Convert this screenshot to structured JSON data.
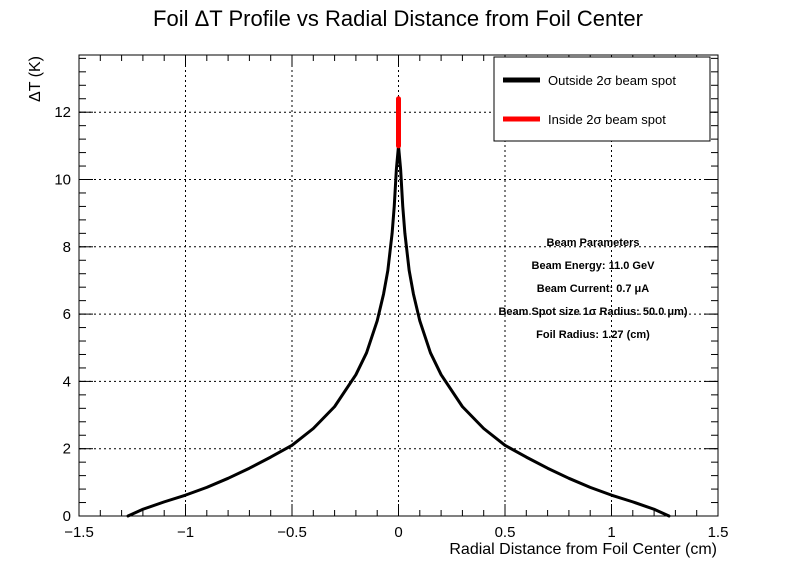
{
  "chart_data": {
    "type": "line",
    "title": "Foil ΔT Profile vs Radial Distance from Foil Center",
    "xlabel": "Radial Distance from Foil Center (cm)",
    "ylabel": "ΔT (K)",
    "xlim": [
      -1.5,
      1.5
    ],
    "ylim": [
      0,
      13.7
    ],
    "x_ticks": [
      -1.5,
      -1,
      -0.5,
      0,
      0.5,
      1,
      1.5
    ],
    "x_tick_labels": [
      "−1.5",
      "−1",
      "−0.5",
      "0",
      "0.5",
      "1",
      "1.5"
    ],
    "y_ticks": [
      0,
      2,
      4,
      6,
      8,
      10,
      12
    ],
    "y_tick_labels": [
      "0",
      "2",
      "4",
      "6",
      "8",
      "10",
      "12"
    ],
    "grid": true,
    "legend_position": "top-right",
    "series": [
      {
        "name": "Outside 2σ beam spot",
        "color": "#000000",
        "points": [
          [
            -1.27,
            0.0
          ],
          [
            -1.2,
            0.2
          ],
          [
            -1.1,
            0.42
          ],
          [
            -1.0,
            0.62
          ],
          [
            -0.9,
            0.85
          ],
          [
            -0.8,
            1.12
          ],
          [
            -0.7,
            1.42
          ],
          [
            -0.6,
            1.75
          ],
          [
            -0.5,
            2.1
          ],
          [
            -0.4,
            2.6
          ],
          [
            -0.3,
            3.25
          ],
          [
            -0.2,
            4.2
          ],
          [
            -0.15,
            4.85
          ],
          [
            -0.1,
            5.8
          ],
          [
            -0.07,
            6.6
          ],
          [
            -0.05,
            7.3
          ],
          [
            -0.03,
            8.4
          ],
          [
            -0.02,
            9.2
          ],
          [
            -0.01,
            10.3
          ],
          [
            0.0,
            11.0
          ],
          [
            0.01,
            10.3
          ],
          [
            0.02,
            9.2
          ],
          [
            0.03,
            8.4
          ],
          [
            0.05,
            7.3
          ],
          [
            0.07,
            6.6
          ],
          [
            0.1,
            5.8
          ],
          [
            0.15,
            4.85
          ],
          [
            0.2,
            4.2
          ],
          [
            0.3,
            3.25
          ],
          [
            0.4,
            2.6
          ],
          [
            0.5,
            2.1
          ],
          [
            0.6,
            1.75
          ],
          [
            0.7,
            1.42
          ],
          [
            0.8,
            1.12
          ],
          [
            0.9,
            0.85
          ],
          [
            1.0,
            0.62
          ],
          [
            1.1,
            0.42
          ],
          [
            1.2,
            0.2
          ],
          [
            1.27,
            0.0
          ]
        ]
      },
      {
        "name": "Inside 2σ beam spot",
        "color": "#ff0000",
        "points": [
          [
            0.0,
            11.0
          ],
          [
            0.0,
            11.6
          ],
          [
            0.0,
            12.0
          ],
          [
            0.0,
            12.4
          ]
        ]
      }
    ],
    "annotation": {
      "heading": "Beam Parameters",
      "lines": [
        "Beam Energy: 11.0 GeV",
        "Beam Current: 0.7 μA",
        "Beam Spot size 1σ Radius: 50.0 μm)",
        "Foil Radius: 1.27 (cm)"
      ]
    }
  }
}
